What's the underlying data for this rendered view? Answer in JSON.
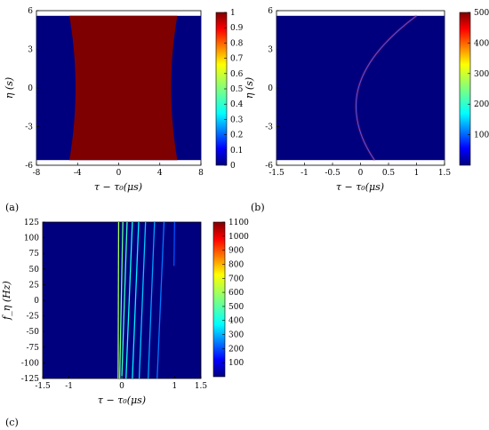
{
  "chart_data": [
    {
      "id": "a",
      "type": "heatmap",
      "panel_label": "(a)",
      "xlabel": "τ − τ₀(μs)",
      "ylabel": "η (s)",
      "xlim": [
        -8,
        8
      ],
      "ylim": [
        -6,
        6
      ],
      "xticks": [
        "-8",
        "-4",
        "0",
        "4",
        "8"
      ],
      "yticks": [
        "6",
        "3",
        "0",
        "-3",
        "-6"
      ],
      "colorbar": {
        "min": 0,
        "max": 1,
        "ticks": [
          "1",
          "0.9",
          "0.8",
          "0.7",
          "0.6",
          "0.5",
          "0.4",
          "0.3",
          "0.2",
          "0.1",
          "0"
        ]
      },
      "data_extent_y": [
        -5.6,
        5.6
      ],
      "band": {
        "value": 1,
        "left_edge": {
          "center": -4.2,
          "curvature": -0.6
        },
        "right_edge": {
          "center": 5.1,
          "curvature": 0.6
        }
      },
      "background_value": 0
    },
    {
      "id": "b",
      "type": "heatmap",
      "panel_label": "(b)",
      "xlabel": "τ − τ₀(μs)",
      "ylabel": "η (s)",
      "xlim": [
        -1.5,
        1.5
      ],
      "ylim": [
        -6,
        6
      ],
      "xticks": [
        "-1.5",
        "-1",
        "-0.5",
        "0",
        "0.5",
        "1",
        "1.5"
      ],
      "yticks": [
        "6",
        "3",
        "0",
        "-3",
        "-6"
      ],
      "colorbar": {
        "min": 0,
        "max": 500,
        "ticks": [
          "500",
          "400",
          "300",
          "200",
          "100"
        ]
      },
      "data_extent_y": [
        -5.6,
        5.6
      ],
      "curve": {
        "vertex_x": -0.08,
        "vertex_y": -1.4,
        "x_at_top": 1.0,
        "x_at_bottom": 0.25,
        "peak_value": 450
      },
      "background_value": 0
    },
    {
      "id": "c",
      "type": "heatmap",
      "panel_label": "(c)",
      "xlabel": "τ − τ₀(μs)",
      "ylabel": "f_η (Hz)",
      "xlim": [
        -1.5,
        1.5
      ],
      "ylim": [
        -125,
        125
      ],
      "xticks": [
        "-1.5",
        "-1",
        "0",
        "1",
        "1.5"
      ],
      "yticks": [
        "125",
        "100",
        "75",
        "50",
        "25",
        "0",
        "-25",
        "-50",
        "-75",
        "-100",
        "-125"
      ],
      "colorbar": {
        "min": 0,
        "max": 1100,
        "ticks": [
          "1100",
          "1000",
          "900",
          "800",
          "700",
          "600",
          "500",
          "400",
          "300",
          "200",
          "100"
        ]
      },
      "lines": [
        {
          "x_top": -0.06,
          "x_bottom": -0.07,
          "y_end": -125,
          "value": 600
        },
        {
          "x_top": 0.02,
          "x_bottom": -0.04,
          "y_end": -125,
          "value": 520
        },
        {
          "x_top": 0.1,
          "x_bottom": 0.0,
          "y_end": -125,
          "value": 460
        },
        {
          "x_top": 0.2,
          "x_bottom": 0.08,
          "y_end": -125,
          "value": 400
        },
        {
          "x_top": 0.32,
          "x_bottom": 0.2,
          "y_end": -125,
          "value": 360
        },
        {
          "x_top": 0.45,
          "x_bottom": 0.33,
          "y_end": -125,
          "value": 320
        },
        {
          "x_top": 0.62,
          "x_bottom": 0.5,
          "y_end": -125,
          "value": 280
        },
        {
          "x_top": 0.8,
          "x_bottom": 0.67,
          "y_end": -125,
          "value": 240
        },
        {
          "x_top": 1.0,
          "x_bottom": 0.96,
          "y_end": 55,
          "value": 200
        }
      ],
      "background_value": 0
    }
  ]
}
